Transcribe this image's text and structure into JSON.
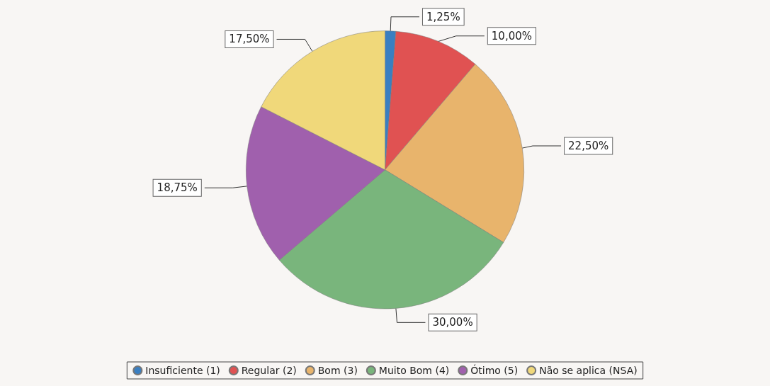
{
  "chart_data": {
    "type": "pie",
    "categories": [
      "Insuficiente (1)",
      "Regular (2)",
      "Bom (3)",
      "Muito Bom (4)",
      "Ótimo (5)",
      "Não se aplica (NSA)"
    ],
    "values": [
      1.25,
      10,
      22.5,
      30,
      18.75,
      17.5
    ],
    "colors": [
      "#3a7fc1",
      "#e05252",
      "#e8b46c",
      "#79b57c",
      "#a060ad",
      "#f0d87a"
    ],
    "value_labels": [
      "1,25%",
      "10,00%",
      "22,50%",
      "30,00%",
      "18,75%",
      "17,50%"
    ],
    "legend": "bottom"
  }
}
